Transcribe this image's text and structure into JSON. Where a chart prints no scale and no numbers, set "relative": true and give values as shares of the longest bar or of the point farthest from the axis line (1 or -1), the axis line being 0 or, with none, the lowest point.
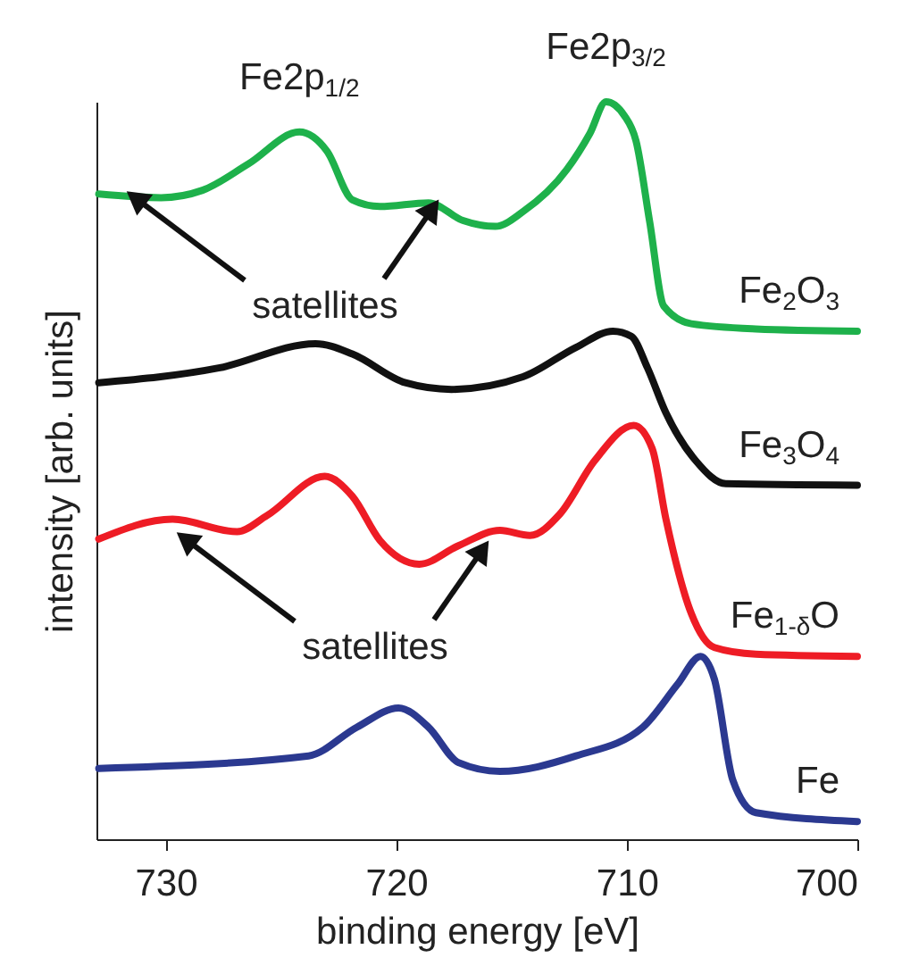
{
  "chart_data": {
    "type": "line",
    "relative": true,
    "xlabel": "binding energy [eV]",
    "ylabel": "intensity [arb. units]",
    "xlim": [
      733,
      700
    ],
    "xticks": [
      730,
      720,
      710,
      700
    ],
    "grid": false,
    "marker": "none",
    "line_style": "solid",
    "tick_labels": "x",
    "series": [
      {
        "name": "Fe$_{2}$O$_{3}$",
        "color": "#1eb14b",
        "x": [
          732.9,
          730.2,
          728.4,
          726.4,
          724.2,
          723.0,
          721.9,
          720.7,
          718.6,
          717.1,
          715.7,
          714.5,
          712.6,
          711.6,
          710.9,
          710.1,
          709.6,
          709.0,
          708.4,
          707.2,
          704.4,
          700.0
        ],
        "values": [
          0.875,
          0.87,
          0.88,
          0.916,
          0.959,
          0.933,
          0.867,
          0.858,
          0.863,
          0.839,
          0.831,
          0.851,
          0.908,
          0.957,
          1.0,
          0.981,
          0.947,
          0.836,
          0.723,
          0.699,
          0.692,
          0.689
        ]
      },
      {
        "name": "Fe$_{3}$O$_{4}$",
        "color": "#111111",
        "x": [
          732.9,
          727.7,
          723.5,
          721.9,
          719.6,
          717.6,
          714.5,
          712.2,
          710.6,
          709.8,
          709.1,
          708.3,
          707.0,
          705.7,
          700.0
        ],
        "values": [
          0.619,
          0.639,
          0.672,
          0.658,
          0.619,
          0.61,
          0.627,
          0.667,
          0.689,
          0.682,
          0.639,
          0.578,
          0.513,
          0.482,
          0.48
        ]
      },
      {
        "name": "Fe$_{1-δ}$O",
        "color": "#ee1c25",
        "x": [
          732.9,
          729.7,
          726.9,
          725.6,
          723.1,
          721.9,
          720.7,
          719.0,
          717.3,
          715.5,
          714.2,
          712.9,
          711.4,
          709.7,
          708.9,
          708.3,
          707.2,
          706.2,
          704.4,
          700.0
        ],
        "values": [
          0.407,
          0.434,
          0.417,
          0.439,
          0.492,
          0.465,
          0.405,
          0.373,
          0.398,
          0.419,
          0.412,
          0.441,
          0.513,
          0.561,
          0.53,
          0.434,
          0.306,
          0.26,
          0.251,
          0.248
        ]
      },
      {
        "name": "Fe",
        "color": "#2b3990",
        "x": [
          732.9,
          723.8,
          721.7,
          719.9,
          718.6,
          717.3,
          715.5,
          712.2,
          709.3,
          707.8,
          706.8,
          706.2,
          705.4,
          704.4,
          700.0
        ],
        "values": [
          0.096,
          0.113,
          0.152,
          0.178,
          0.152,
          0.104,
          0.092,
          0.113,
          0.152,
          0.21,
          0.248,
          0.217,
          0.08,
          0.036,
          0.024
        ]
      }
    ],
    "annotations": [
      {
        "text": "Fe2p$_{1/2}$",
        "x": 724.2,
        "y": 0.959
      },
      {
        "text": "Fe2p$_{3/2}$",
        "x": 710.9,
        "y": 1.0
      },
      "satellites",
      "satellites"
    ]
  }
}
